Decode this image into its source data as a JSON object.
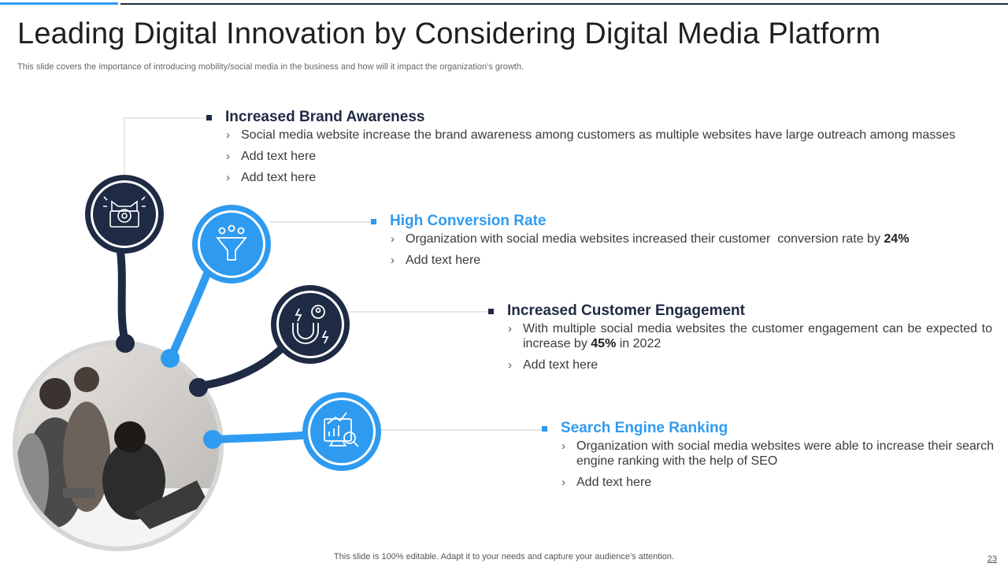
{
  "header": {
    "title": "Leading Digital Innovation by Considering Digital Media Platform",
    "subtitle": "This slide covers the importance of introducing mobility/social media in the business and how will it impact the organization’s growth."
  },
  "colors": {
    "dark": "#1f2a44",
    "accent": "#2f9bf0"
  },
  "sections": [
    {
      "title": "Increased Brand Awareness",
      "icon": "megaphone-gear-icon",
      "bullets": [
        {
          "text": "Social media website increase the brand awareness among customers as multiple websites have large outreach among masses"
        },
        {
          "text": "Add text here"
        },
        {
          "text": "Add text here"
        }
      ]
    },
    {
      "title": "High Conversion Rate",
      "icon": "funnel-icon",
      "bullets": [
        {
          "text": "Organization with social media websites increased their customer  conversion rate by ",
          "bold": "24%"
        },
        {
          "text": "Add text here"
        }
      ]
    },
    {
      "title": "Increased Customer Engagement",
      "icon": "magnet-user-icon",
      "bullets": [
        {
          "text": "With multiple social media websites the customer engagement can be expected to increase by ",
          "bold": "45%",
          "after": " in 2022"
        },
        {
          "text": "Add text here"
        }
      ]
    },
    {
      "title": "Search Engine Ranking",
      "icon": "seo-chart-icon",
      "bullets": [
        {
          "text": "Organization with social media websites were able to increase their search engine ranking with the help of SEO"
        },
        {
          "text": "Add text here"
        }
      ]
    }
  ],
  "photo": "team-meeting-photo",
  "footer": {
    "note": "This slide is 100% editable. Adapt it to your needs and capture your audience’s attention.",
    "page_number": "23"
  }
}
